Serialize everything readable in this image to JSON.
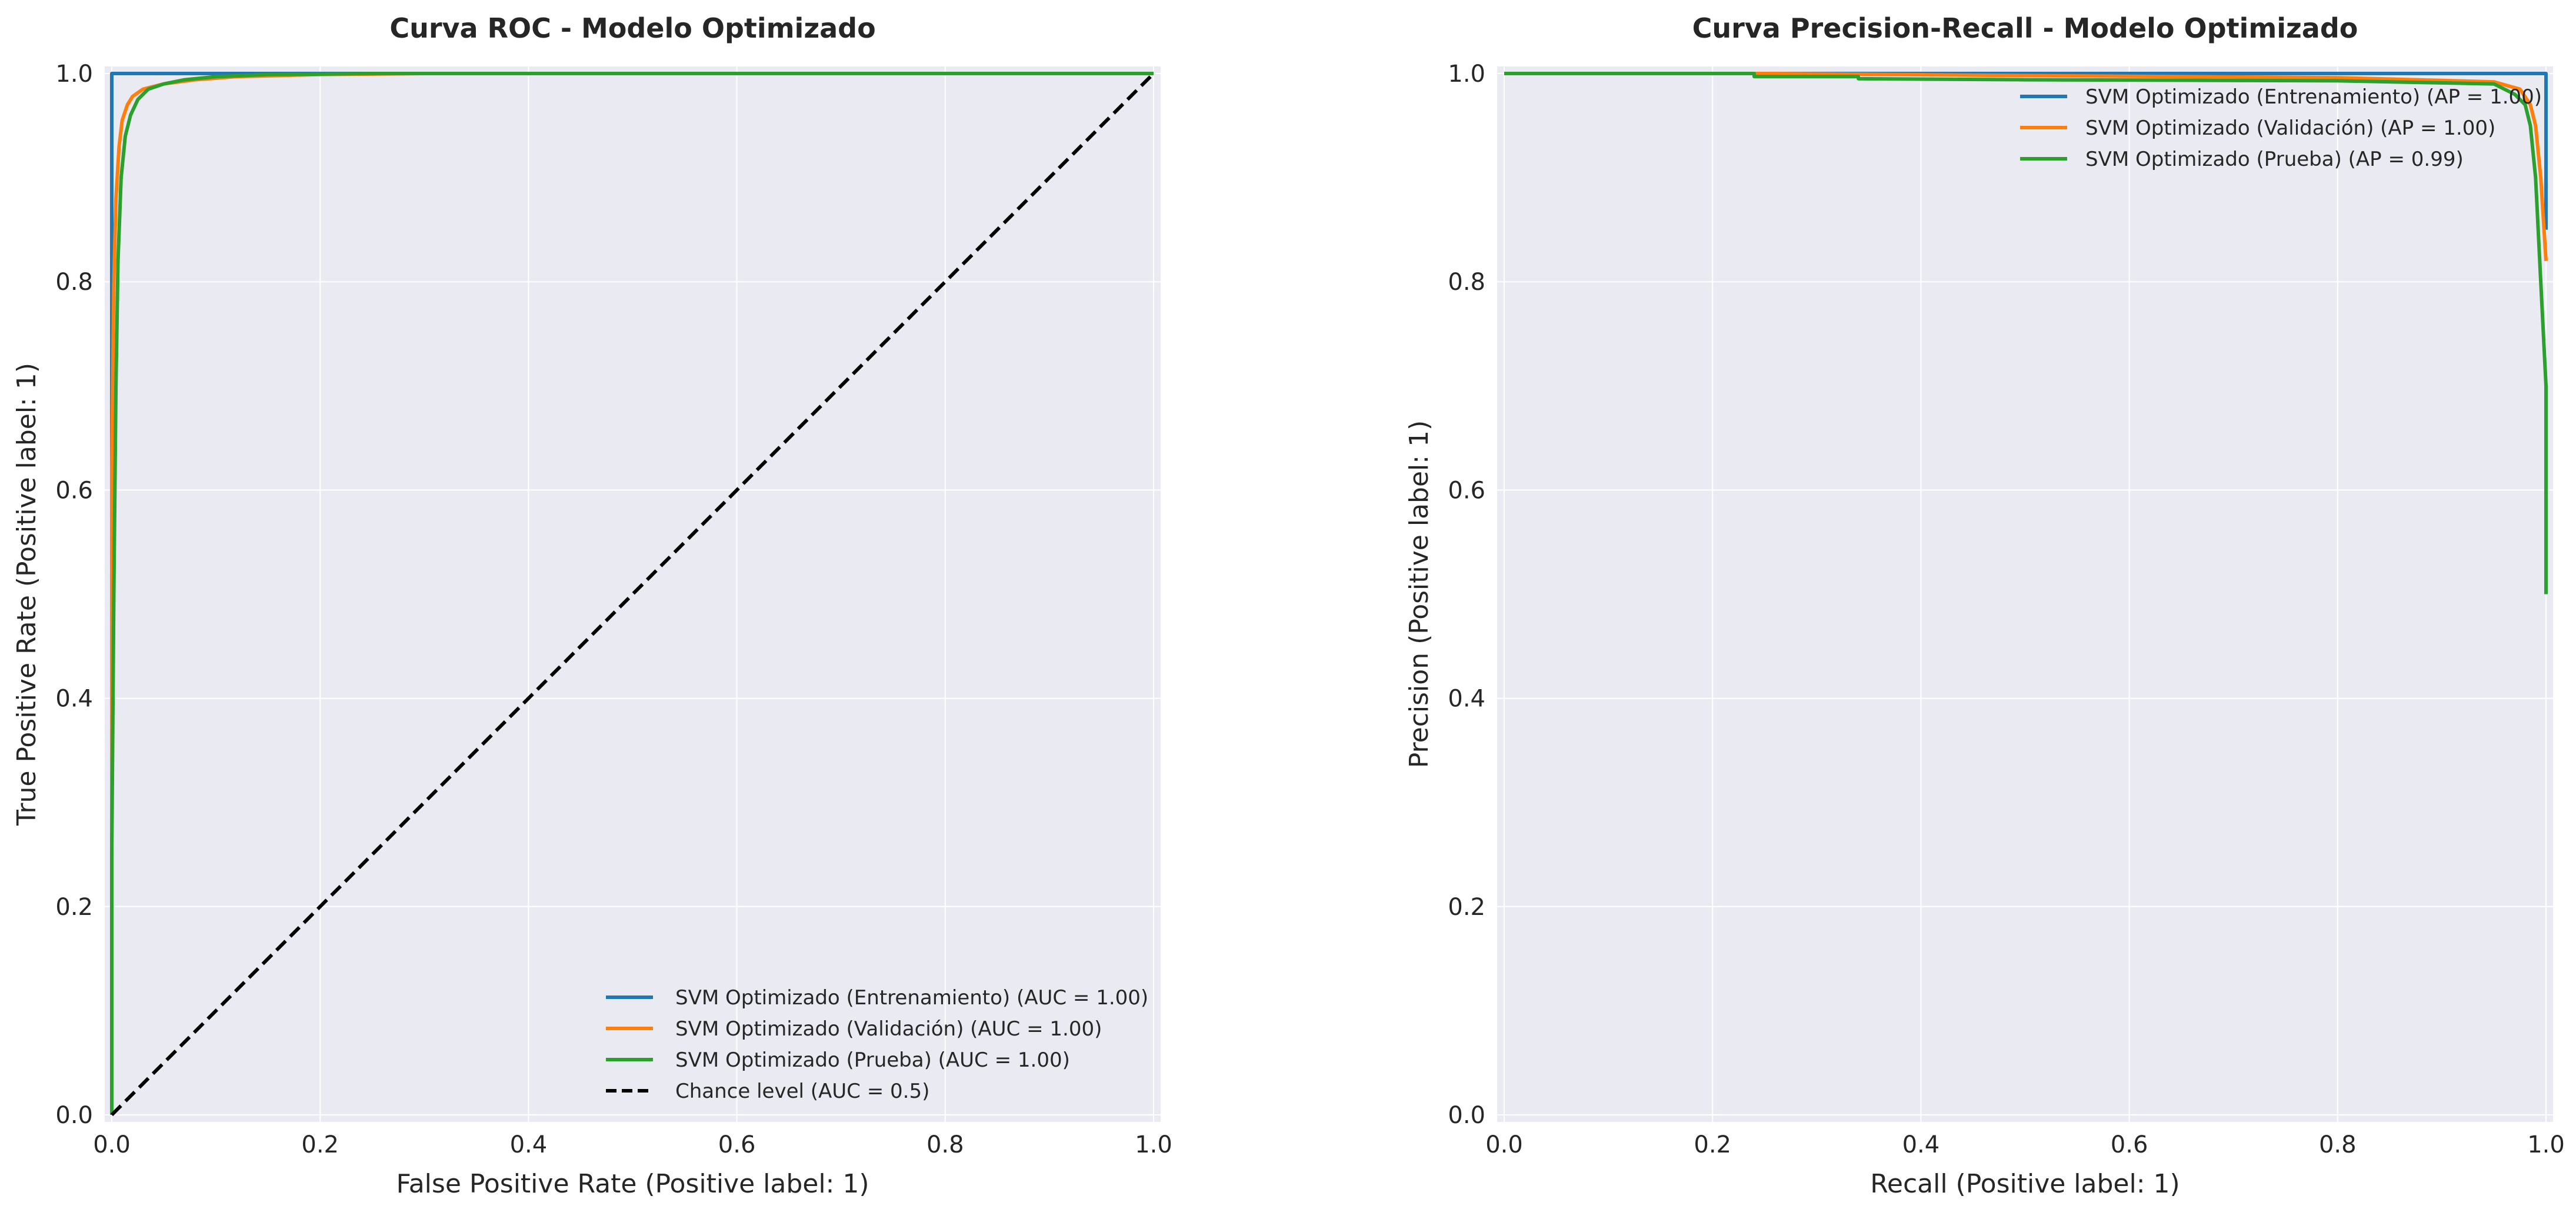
{
  "colors": {
    "background": "#eaeaf2",
    "grid": "#ffffff",
    "entrenamiento": "#1f77b4",
    "validacion": "#ff7f0e",
    "prueba": "#2ca02c",
    "chance": "#000000"
  },
  "chart_data": [
    {
      "type": "line",
      "title": "Curva ROC - Modelo Optimizado",
      "xlabel": "False Positive Rate (Positive label: 1)",
      "ylabel": "True Positive Rate (Positive label: 1)",
      "xlim": [
        0,
        1
      ],
      "ylim": [
        0,
        1
      ],
      "xticks": [
        "0.0",
        "0.2",
        "0.4",
        "0.6",
        "0.8",
        "1.0"
      ],
      "yticks": [
        "0.0",
        "0.2",
        "0.4",
        "0.6",
        "0.8",
        "1.0"
      ],
      "grid": true,
      "legend_position": "lower-right",
      "series": [
        {
          "name": "SVM Optimizado (Entrenamiento) (AUC = 1.00)",
          "color": "#1f77b4",
          "dashed": false,
          "x": [
            0,
            0,
            0.003,
            1
          ],
          "y": [
            0,
            1,
            1,
            1
          ]
        },
        {
          "name": "SVM Optimizado (Validación) (AUC = 1.00)",
          "color": "#ff7f0e",
          "dashed": false,
          "x": [
            0,
            0,
            0.002,
            0.004,
            0.007,
            0.01,
            0.015,
            0.02,
            0.03,
            0.05,
            0.08,
            0.12,
            0.2,
            0.3,
            1
          ],
          "y": [
            0,
            0.62,
            0.8,
            0.88,
            0.93,
            0.955,
            0.97,
            0.978,
            0.985,
            0.99,
            0.994,
            0.997,
            0.999,
            1,
            1
          ]
        },
        {
          "name": "SVM Optimizado (Prueba) (AUC = 1.00)",
          "color": "#2ca02c",
          "dashed": false,
          "x": [
            0,
            0,
            0.002,
            0.004,
            0.006,
            0.009,
            0.013,
            0.018,
            0.025,
            0.035,
            0.05,
            0.07,
            0.1,
            0.15,
            0.25,
            1
          ],
          "y": [
            0,
            0.25,
            0.5,
            0.7,
            0.82,
            0.9,
            0.94,
            0.96,
            0.975,
            0.985,
            0.99,
            0.994,
            0.997,
            0.999,
            1,
            1
          ]
        },
        {
          "name": "Chance level (AUC = 0.5)",
          "color": "#000000",
          "dashed": true,
          "x": [
            0,
            1
          ],
          "y": [
            0,
            1
          ]
        }
      ]
    },
    {
      "type": "line",
      "title": "Curva Precision-Recall - Modelo Optimizado",
      "xlabel": "Recall (Positive label: 1)",
      "ylabel": "Precision (Positive label: 1)",
      "xlim": [
        0,
        1
      ],
      "ylim": [
        0,
        1
      ],
      "xticks": [
        "0.0",
        "0.2",
        "0.4",
        "0.6",
        "0.8",
        "1.0"
      ],
      "yticks": [
        "0.0",
        "0.2",
        "0.4",
        "0.6",
        "0.8",
        "1.0"
      ],
      "grid": true,
      "legend_position": "upper-right",
      "series": [
        {
          "name": "SVM Optimizado (Entrenamiento) (AP = 1.00)",
          "color": "#1f77b4",
          "dashed": false,
          "x": [
            0,
            0.99,
            1,
            1
          ],
          "y": [
            1,
            1,
            1,
            0.85
          ]
        },
        {
          "name": "SVM Optimizado (Validación) (AP = 1.00)",
          "color": "#ff7f0e",
          "dashed": false,
          "x": [
            0,
            0.26,
            0.5,
            0.8,
            0.95,
            0.975,
            0.985,
            0.99,
            0.995,
            1
          ],
          "y": [
            1,
            1,
            0.998,
            0.996,
            0.992,
            0.985,
            0.97,
            0.95,
            0.9,
            0.82
          ]
        },
        {
          "name": "SVM Optimizado (Prueba) (AP = 0.99)",
          "color": "#2ca02c",
          "dashed": false,
          "x": [
            0,
            0.24,
            0.24,
            0.34,
            0.34,
            0.5,
            0.8,
            0.95,
            0.97,
            0.98,
            0.985,
            0.99,
            0.995,
            1,
            1
          ],
          "y": [
            1,
            1,
            0.997,
            0.997,
            0.995,
            0.994,
            0.993,
            0.99,
            0.98,
            0.97,
            0.95,
            0.9,
            0.8,
            0.7,
            0.5
          ]
        }
      ]
    }
  ]
}
